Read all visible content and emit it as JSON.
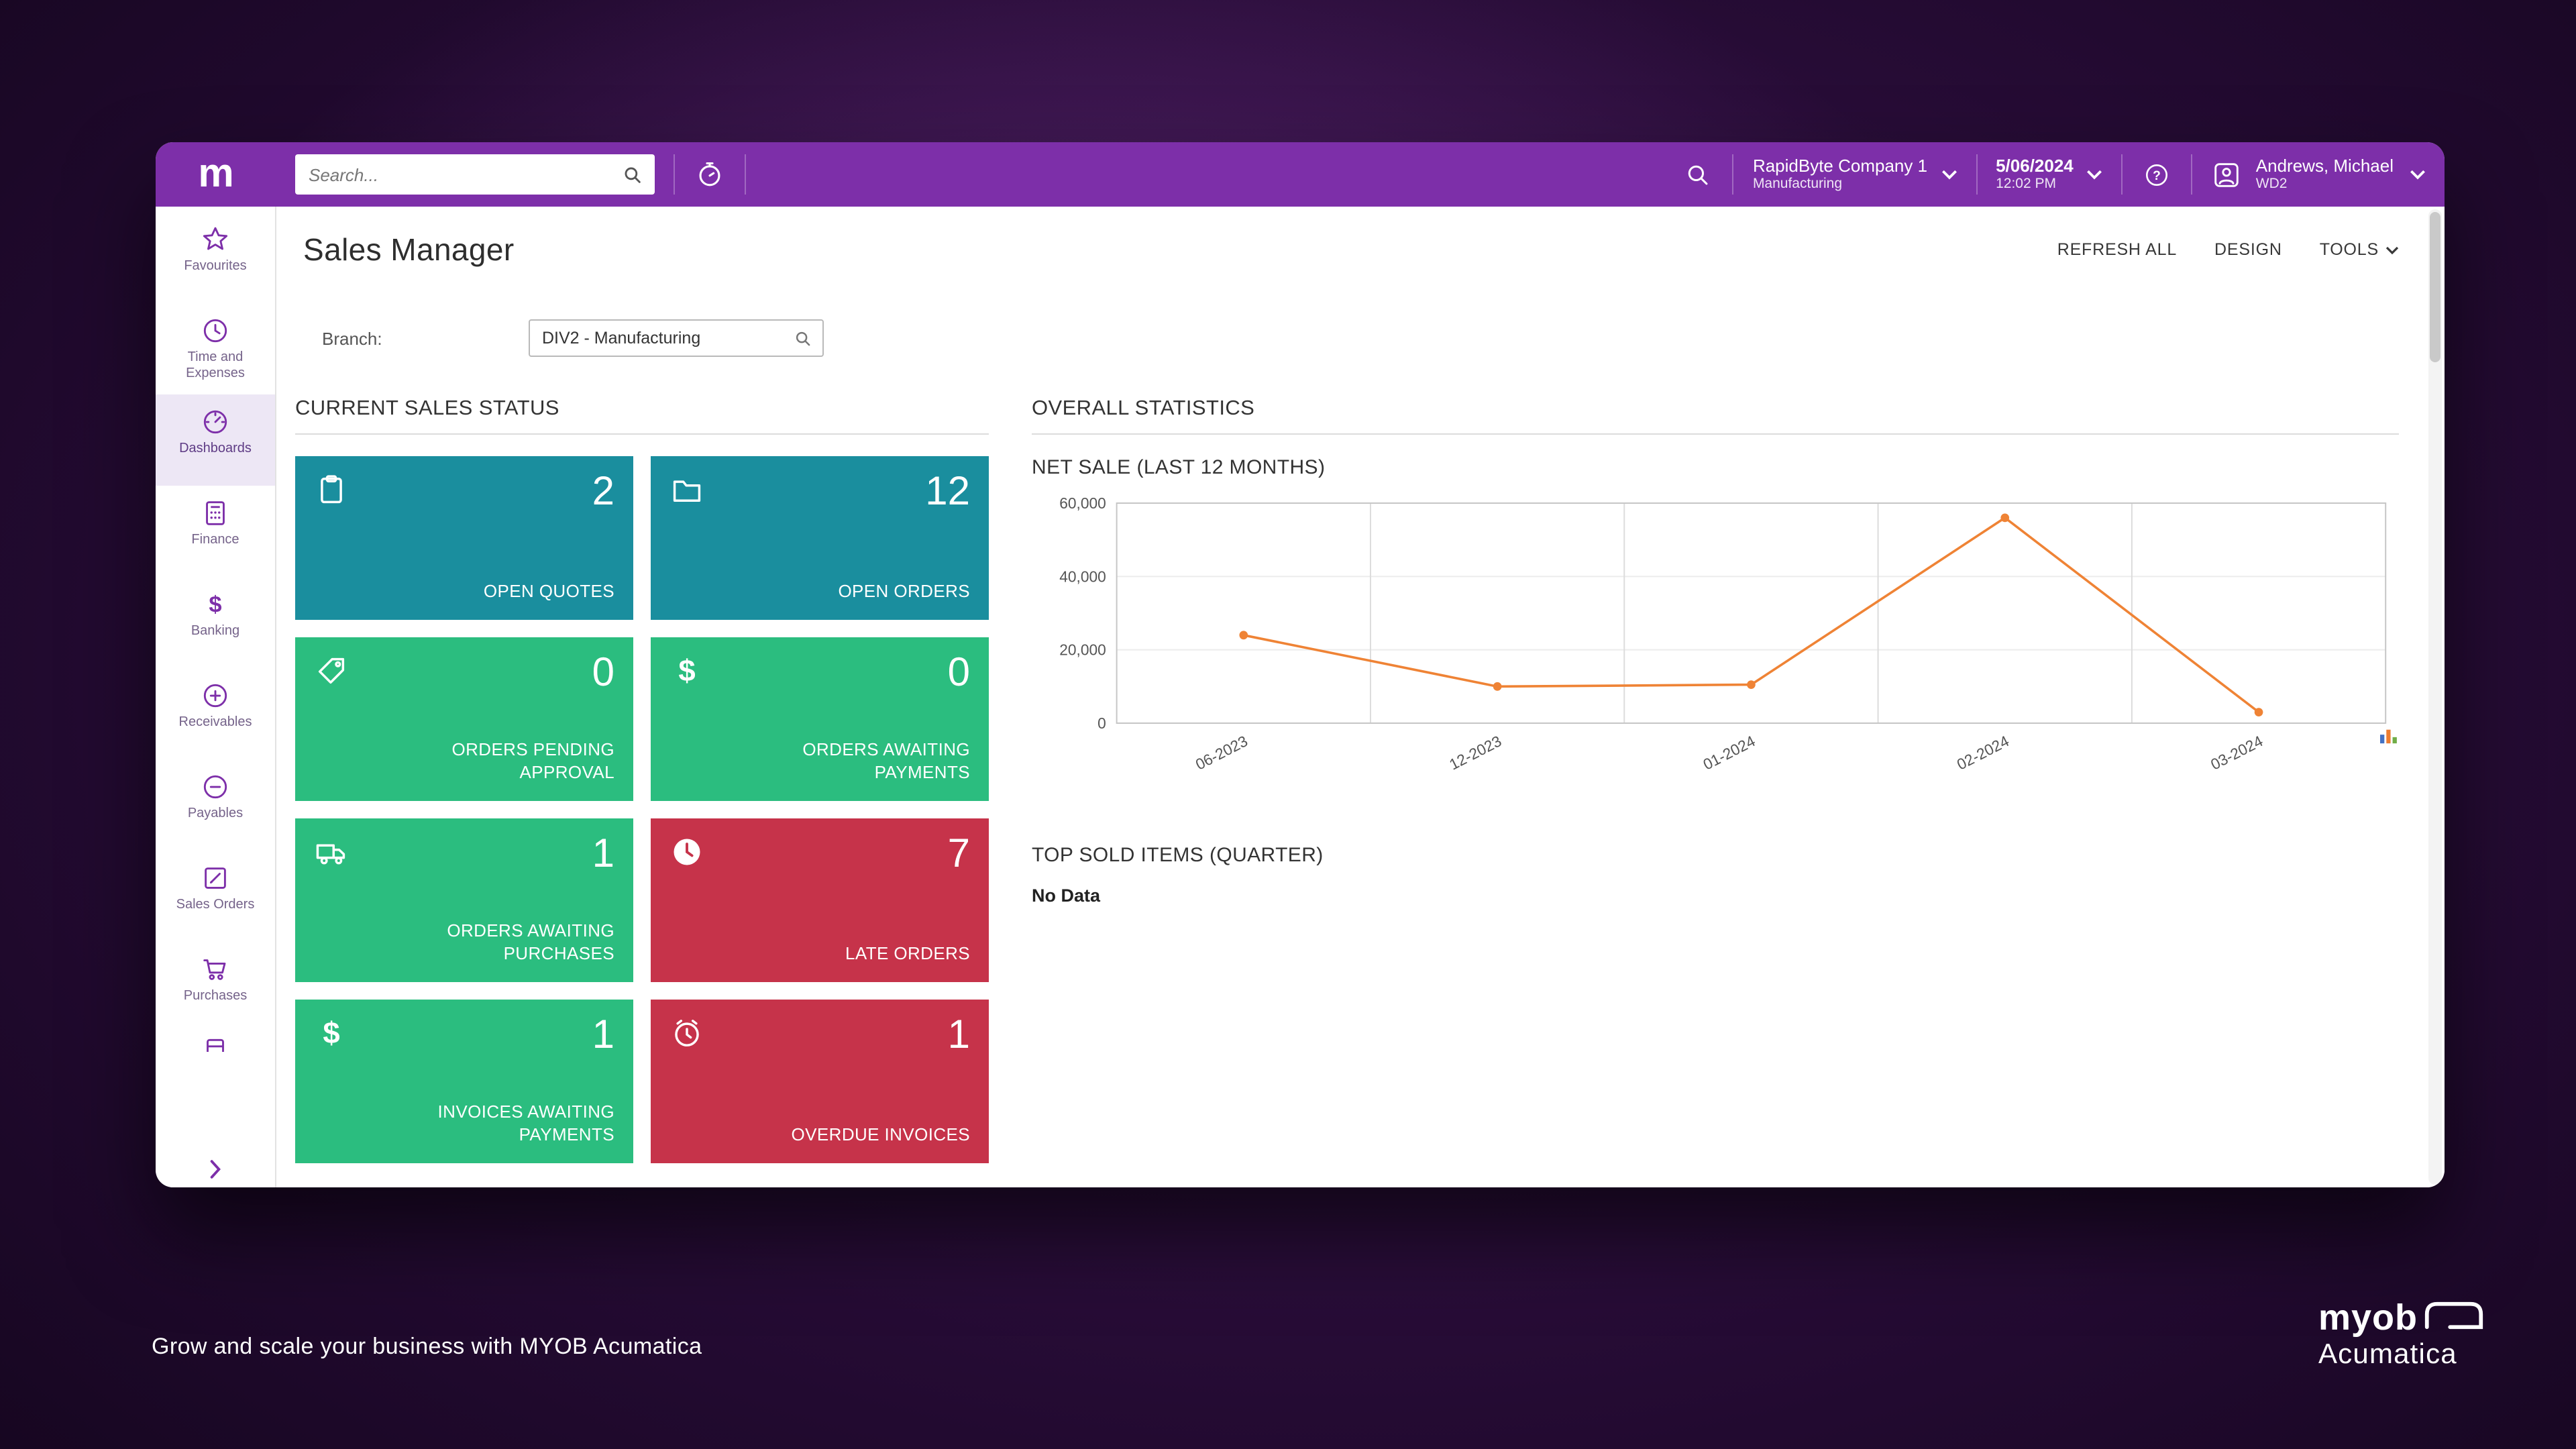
{
  "topbar": {
    "logo": "m",
    "search_placeholder": "Search...",
    "company": {
      "name": "RapidByte Company 1",
      "sub": "Manufacturing"
    },
    "datetime": {
      "date": "5/06/2024",
      "time": "12:02 PM"
    },
    "user": {
      "name": "Andrews, Michael",
      "sub": "WD2"
    }
  },
  "sidebar": {
    "items": [
      {
        "label": "Favourites",
        "icon": "star-icon"
      },
      {
        "label": "Time and Expenses",
        "icon": "clock-icon"
      },
      {
        "label": "Dashboards",
        "icon": "gauge-icon",
        "active": true
      },
      {
        "label": "Finance",
        "icon": "calculator-icon"
      },
      {
        "label": "Banking",
        "icon": "dollar-icon"
      },
      {
        "label": "Receivables",
        "icon": "plus-circle-icon"
      },
      {
        "label": "Payables",
        "icon": "minus-circle-icon"
      },
      {
        "label": "Sales Orders",
        "icon": "note-pencil-icon"
      },
      {
        "label": "Purchases",
        "icon": "cart-icon"
      }
    ]
  },
  "page": {
    "title": "Sales Manager",
    "actions": [
      "REFRESH ALL",
      "DESIGN",
      "TOOLS"
    ],
    "branch_label": "Branch:",
    "branch_value": "DIV2 - Manufacturing"
  },
  "sales_status": {
    "title": "CURRENT SALES STATUS",
    "tiles": [
      {
        "value": "2",
        "label": "OPEN QUOTES",
        "color": "teal",
        "icon": "clipboard-icon"
      },
      {
        "value": "12",
        "label": "OPEN ORDERS",
        "color": "teal",
        "icon": "folder-icon"
      },
      {
        "value": "0",
        "label": "ORDERS PENDING APPROVAL",
        "color": "green",
        "icon": "tag-icon"
      },
      {
        "value": "0",
        "label": "ORDERS AWAITING PAYMENTS",
        "color": "green",
        "icon": "dollar-icon"
      },
      {
        "value": "1",
        "label": "ORDERS AWAITING PURCHASES",
        "color": "green",
        "icon": "truck-icon"
      },
      {
        "value": "7",
        "label": "LATE ORDERS",
        "color": "red",
        "icon": "clock-filled-icon"
      },
      {
        "value": "1",
        "label": "INVOICES AWAITING PAYMENTS",
        "color": "green",
        "icon": "dollar-icon"
      },
      {
        "value": "1",
        "label": "OVERDUE INVOICES",
        "color": "red",
        "icon": "alarm-clock-icon"
      }
    ]
  },
  "statistics": {
    "title": "OVERALL STATISTICS",
    "chart_title": "NET SALE (LAST 12 MONTHS)",
    "top_sold_title": "TOP SOLD ITEMS (QUARTER)",
    "top_sold_empty": "No Data"
  },
  "chart_data": {
    "type": "line",
    "title": "NET SALE (LAST 12 MONTHS)",
    "x": [
      "06-2023",
      "12-2023",
      "01-2024",
      "02-2024",
      "03-2024"
    ],
    "values": [
      24000,
      10000,
      10500,
      56000,
      3000
    ],
    "ylim": [
      0,
      60000
    ],
    "yticks": [
      0,
      20000,
      40000,
      60000
    ],
    "ytick_labels": [
      "0",
      "20,000",
      "40,000",
      "60,000"
    ],
    "line_color": "#EF8335",
    "grid": true,
    "legend": "none"
  },
  "footer": {
    "tagline": "Grow and scale your business with MYOB Acumatica",
    "brand": {
      "name": "myob",
      "sub": "Acumatica"
    }
  },
  "colors": {
    "topbar_purple": "#7D2FA9",
    "tile_teal": "#1A8E9E",
    "tile_green": "#2BBD7F",
    "tile_red": "#C6334A",
    "chart_line": "#EF8335",
    "sidebar_active_bg": "#EDE7F5"
  }
}
